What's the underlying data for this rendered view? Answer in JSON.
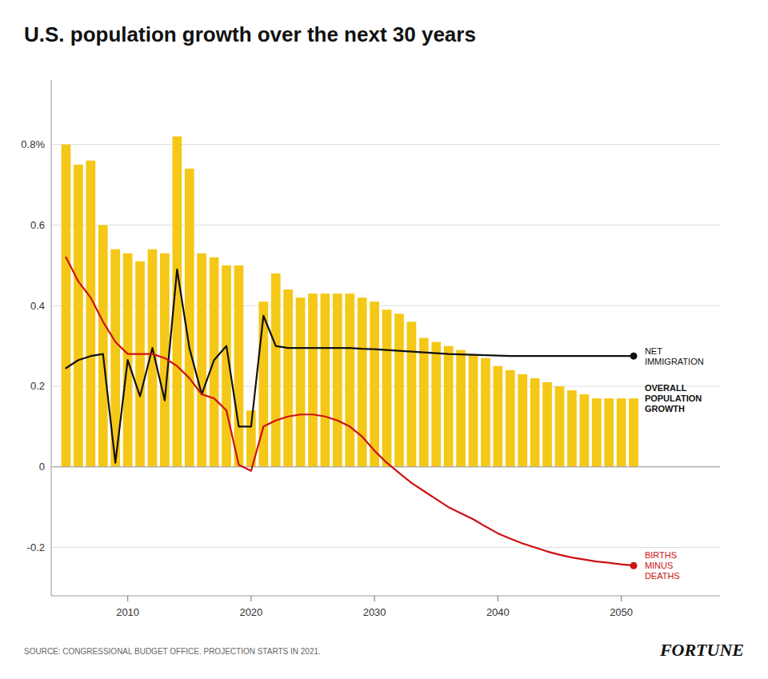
{
  "chart_data": {
    "type": "bar",
    "title": "U.S. population growth over the next 30 years",
    "annotations": [
      "SOURCE: CONGRESSIONAL BUDGET OFFICE. PROJECTION STARTS IN 2021.",
      "FORTUNE"
    ],
    "x": [
      2005,
      2006,
      2007,
      2008,
      2009,
      2010,
      2011,
      2012,
      2013,
      2014,
      2015,
      2016,
      2017,
      2018,
      2019,
      2020,
      2021,
      2022,
      2023,
      2024,
      2025,
      2026,
      2027,
      2028,
      2029,
      2030,
      2031,
      2032,
      2033,
      2034,
      2035,
      2036,
      2037,
      2038,
      2039,
      2040,
      2041,
      2042,
      2043,
      2044,
      2045,
      2046,
      2047,
      2048,
      2049,
      2050,
      2051
    ],
    "series": [
      {
        "name": "OVERALL\nPOPULATION\nGROWTH",
        "type": "bar",
        "color": "#F5C818",
        "values": [
          0.8,
          0.75,
          0.76,
          0.6,
          0.54,
          0.53,
          0.51,
          0.54,
          0.53,
          0.82,
          0.74,
          0.53,
          0.52,
          0.5,
          0.5,
          0.14,
          0.41,
          0.48,
          0.44,
          0.42,
          0.43,
          0.43,
          0.43,
          0.43,
          0.42,
          0.41,
          0.39,
          0.38,
          0.36,
          0.32,
          0.31,
          0.3,
          0.29,
          0.28,
          0.27,
          0.25,
          0.24,
          0.23,
          0.22,
          0.21,
          0.2,
          0.19,
          0.18,
          0.17,
          0.17,
          0.17,
          0.17
        ]
      },
      {
        "name": "NET\nIMMIGRATION",
        "type": "line",
        "color": "#111111",
        "values": [
          0.245,
          0.265,
          0.275,
          0.28,
          0.01,
          0.265,
          0.175,
          0.295,
          0.165,
          0.49,
          0.295,
          0.18,
          0.265,
          0.3,
          0.1,
          0.1,
          0.375,
          0.3,
          0.295,
          0.295,
          0.295,
          0.295,
          0.295,
          0.295,
          0.293,
          0.292,
          0.29,
          0.288,
          0.286,
          0.284,
          0.282,
          0.28,
          0.279,
          0.278,
          0.277,
          0.276,
          0.275,
          0.275,
          0.275,
          0.275,
          0.275,
          0.275,
          0.275,
          0.275,
          0.275,
          0.275,
          0.275
        ]
      },
      {
        "name": "BIRTHS\nMINUS\nDEATHS",
        "type": "line",
        "color": "#cc1111",
        "values": [
          0.52,
          0.46,
          0.42,
          0.36,
          0.31,
          0.28,
          0.28,
          0.28,
          0.27,
          0.25,
          0.22,
          0.18,
          0.17,
          0.14,
          0.005,
          -0.01,
          0.1,
          0.115,
          0.125,
          0.13,
          0.13,
          0.125,
          0.115,
          0.1,
          0.075,
          0.04,
          0.01,
          -0.015,
          -0.04,
          -0.06,
          -0.08,
          -0.1,
          -0.115,
          -0.13,
          -0.148,
          -0.165,
          -0.178,
          -0.19,
          -0.2,
          -0.21,
          -0.218,
          -0.225,
          -0.23,
          -0.235,
          -0.238,
          -0.242,
          -0.245
        ]
      }
    ],
    "xlim": [
      2003.8,
      2058
    ],
    "xticks": [
      2010,
      2020,
      2030,
      2040,
      2050
    ],
    "ylim": [
      -0.32,
      0.96
    ],
    "yticks": [
      -0.2,
      0,
      0.2,
      0.4,
      0.6,
      {
        "value": 0.8,
        "label": "0.8%"
      }
    ],
    "grid": true
  }
}
